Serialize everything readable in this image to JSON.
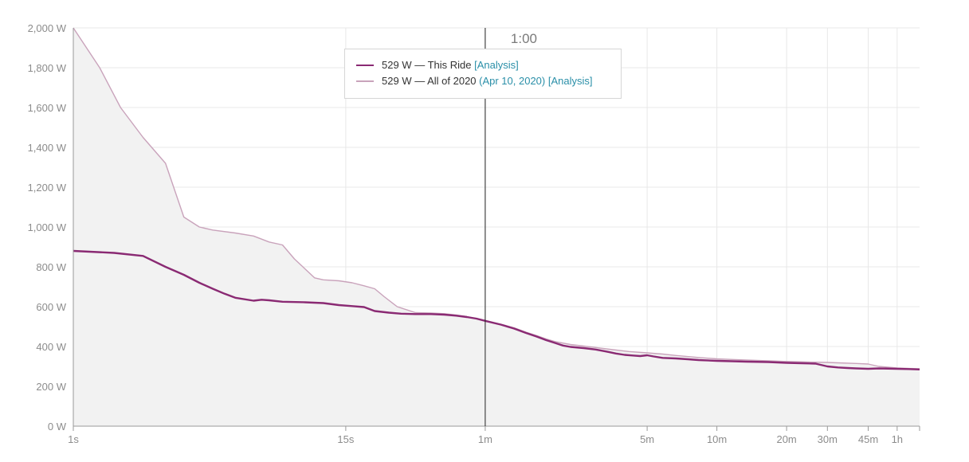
{
  "chart_data": {
    "type": "line",
    "x_scale": "log",
    "x_unit": "seconds",
    "ylim": [
      0,
      2000
    ],
    "xlim": [
      1,
      4500
    ],
    "y_ticks": [
      {
        "value": 0,
        "label": "0 W"
      },
      {
        "value": 200,
        "label": "200 W"
      },
      {
        "value": 400,
        "label": "400 W"
      },
      {
        "value": 600,
        "label": "600 W"
      },
      {
        "value": 800,
        "label": "800 W"
      },
      {
        "value": 1000,
        "label": "1,000 W"
      },
      {
        "value": 1200,
        "label": "1,200 W"
      },
      {
        "value": 1400,
        "label": "1,400 W"
      },
      {
        "value": 1600,
        "label": "1,600 W"
      },
      {
        "value": 1800,
        "label": "1,800 W"
      },
      {
        "value": 2000,
        "label": "2,000 W"
      }
    ],
    "x_ticks": [
      {
        "value": 1,
        "label": "1s"
      },
      {
        "value": 15,
        "label": "15s"
      },
      {
        "value": 60,
        "label": "1m"
      },
      {
        "value": 300,
        "label": "5m"
      },
      {
        "value": 600,
        "label": "10m"
      },
      {
        "value": 1200,
        "label": "20m"
      },
      {
        "value": 1800,
        "label": "30m"
      },
      {
        "value": 2700,
        "label": "45m"
      },
      {
        "value": 3600,
        "label": "1h"
      }
    ],
    "grid": true,
    "hover": {
      "x": 60,
      "label": "1:00"
    },
    "series": [
      {
        "name": "This Ride",
        "color": "#8a2a73",
        "points": [
          [
            1,
            880
          ],
          [
            1.5,
            870
          ],
          [
            2,
            855
          ],
          [
            2.5,
            800
          ],
          [
            3,
            760
          ],
          [
            3.5,
            720
          ],
          [
            4,
            690
          ],
          [
            4.5,
            665
          ],
          [
            5,
            645
          ],
          [
            6,
            630
          ],
          [
            6.5,
            635
          ],
          [
            7,
            632
          ],
          [
            8,
            625
          ],
          [
            10,
            622
          ],
          [
            12,
            618
          ],
          [
            14,
            608
          ],
          [
            16,
            603
          ],
          [
            18,
            598
          ],
          [
            20,
            578
          ],
          [
            23,
            570
          ],
          [
            26,
            565
          ],
          [
            30,
            563
          ],
          [
            35,
            563
          ],
          [
            40,
            560
          ],
          [
            45,
            555
          ],
          [
            50,
            548
          ],
          [
            55,
            540
          ],
          [
            60,
            529
          ],
          [
            70,
            510
          ],
          [
            80,
            490
          ],
          [
            90,
            468
          ],
          [
            100,
            450
          ],
          [
            110,
            432
          ],
          [
            120,
            418
          ],
          [
            130,
            405
          ],
          [
            140,
            398
          ],
          [
            160,
            392
          ],
          [
            180,
            385
          ],
          [
            200,
            375
          ],
          [
            220,
            365
          ],
          [
            240,
            358
          ],
          [
            260,
            355
          ],
          [
            280,
            352
          ],
          [
            300,
            356
          ],
          [
            320,
            350
          ],
          [
            350,
            343
          ],
          [
            400,
            340
          ],
          [
            450,
            336
          ],
          [
            500,
            332
          ],
          [
            600,
            328
          ],
          [
            700,
            326
          ],
          [
            800,
            324
          ],
          [
            1000,
            322
          ],
          [
            1200,
            318
          ],
          [
            1400,
            316
          ],
          [
            1600,
            314
          ],
          [
            1800,
            300
          ],
          [
            2000,
            295
          ],
          [
            2200,
            292
          ],
          [
            2400,
            290
          ],
          [
            2700,
            288
          ],
          [
            3000,
            290
          ],
          [
            3600,
            288
          ],
          [
            4000,
            287
          ],
          [
            4500,
            285
          ]
        ]
      },
      {
        "name": "All of 2020",
        "date": "Apr 10, 2020",
        "color": "#c9a3bb",
        "points": [
          [
            1,
            2000
          ],
          [
            1.3,
            1800
          ],
          [
            1.6,
            1600
          ],
          [
            2,
            1450
          ],
          [
            2.5,
            1320
          ],
          [
            3,
            1050
          ],
          [
            3.5,
            1000
          ],
          [
            4,
            985
          ],
          [
            5,
            970
          ],
          [
            6,
            955
          ],
          [
            7,
            925
          ],
          [
            8,
            910
          ],
          [
            9,
            840
          ],
          [
            10,
            790
          ],
          [
            11,
            745
          ],
          [
            12,
            735
          ],
          [
            14,
            730
          ],
          [
            16,
            720
          ],
          [
            18,
            705
          ],
          [
            20,
            690
          ],
          [
            22,
            650
          ],
          [
            25,
            600
          ],
          [
            30,
            570
          ],
          [
            35,
            568
          ],
          [
            40,
            565
          ],
          [
            45,
            558
          ],
          [
            50,
            550
          ],
          [
            55,
            540
          ],
          [
            60,
            529
          ],
          [
            70,
            512
          ],
          [
            80,
            494
          ],
          [
            90,
            472
          ],
          [
            100,
            455
          ],
          [
            110,
            438
          ],
          [
            120,
            425
          ],
          [
            140,
            410
          ],
          [
            160,
            402
          ],
          [
            180,
            395
          ],
          [
            200,
            388
          ],
          [
            250,
            375
          ],
          [
            300,
            368
          ],
          [
            350,
            362
          ],
          [
            400,
            355
          ],
          [
            500,
            345
          ],
          [
            600,
            338
          ],
          [
            700,
            335
          ],
          [
            800,
            332
          ],
          [
            1000,
            328
          ],
          [
            1200,
            325
          ],
          [
            1500,
            322
          ],
          [
            1800,
            320
          ],
          [
            2000,
            318
          ],
          [
            2400,
            315
          ],
          [
            2700,
            312
          ],
          [
            3000,
            300
          ],
          [
            3600,
            292
          ],
          [
            4000,
            290
          ],
          [
            4500,
            288
          ]
        ]
      }
    ]
  },
  "tooltip": {
    "ride": {
      "value": "529",
      "text": " W — This Ride ",
      "analysis": "[Analysis]"
    },
    "year": {
      "value": "529",
      "text": " W — All of 2020 ",
      "date_link": "(Apr 10, 2020)",
      "analysis": "[Analysis]"
    }
  }
}
